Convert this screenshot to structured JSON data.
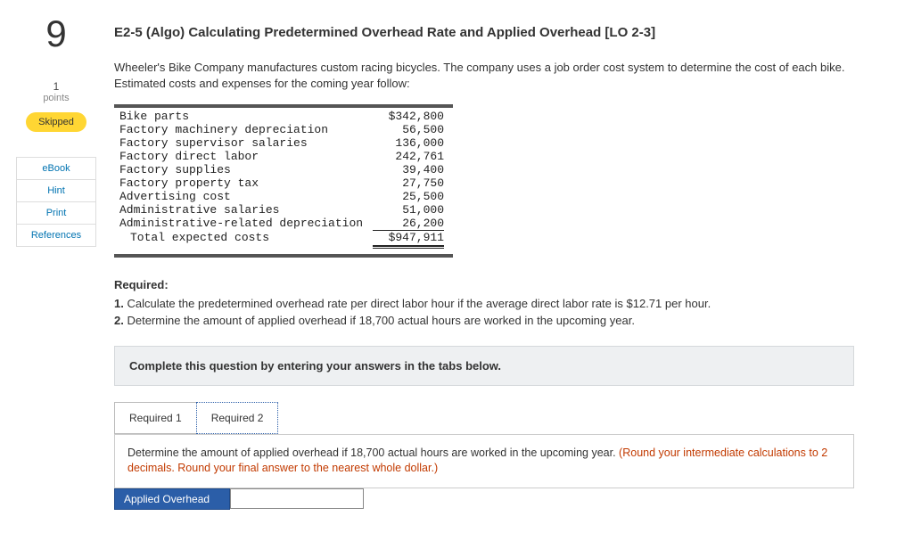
{
  "sidebar": {
    "question_number": "9",
    "points_value": "1",
    "points_label": "points",
    "skipped_label": "Skipped",
    "links": {
      "ebook": "eBook",
      "hint": "Hint",
      "print": "Print",
      "references": "References"
    }
  },
  "title": "E2-5 (Algo) Calculating Predetermined Overhead Rate and Applied Overhead [LO 2-3]",
  "intro": "Wheeler's Bike Company manufactures custom racing bicycles. The company uses a job order cost system to determine the cost of each bike. Estimated costs and expenses for the coming year follow:",
  "costs": {
    "rows": [
      {
        "label": "Bike parts",
        "value": "$342,800"
      },
      {
        "label": "Factory machinery depreciation",
        "value": "56,500"
      },
      {
        "label": "Factory supervisor salaries",
        "value": "136,000"
      },
      {
        "label": "Factory direct labor",
        "value": "242,761"
      },
      {
        "label": "Factory supplies",
        "value": "39,400"
      },
      {
        "label": "Factory property tax",
        "value": "27,750"
      },
      {
        "label": "Advertising cost",
        "value": "25,500"
      },
      {
        "label": "Administrative salaries",
        "value": "51,000"
      },
      {
        "label": "Administrative-related depreciation",
        "value": "26,200"
      }
    ],
    "total_label": "Total expected costs",
    "total_value": "$947,911"
  },
  "required": {
    "heading": "Required:",
    "item1_prefix": "1. ",
    "item1": "Calculate the predetermined overhead rate per direct labor hour if the average direct labor rate is $12.71 per hour.",
    "item2_prefix": "2. ",
    "item2": "Determine the amount of applied overhead if 18,700 actual hours are worked in the upcoming year."
  },
  "instruction_box": "Complete this question by entering your answers in the tabs below.",
  "tabs": {
    "req1": "Required 1",
    "req2": "Required 2"
  },
  "panel": {
    "text": "Determine the amount of applied overhead if 18,700 actual hours are worked in the upcoming year. ",
    "note": "(Round your intermediate calculations to 2 decimals. Round your final answer to the nearest whole dollar.)"
  },
  "answer": {
    "label": "Applied Overhead",
    "value": ""
  }
}
